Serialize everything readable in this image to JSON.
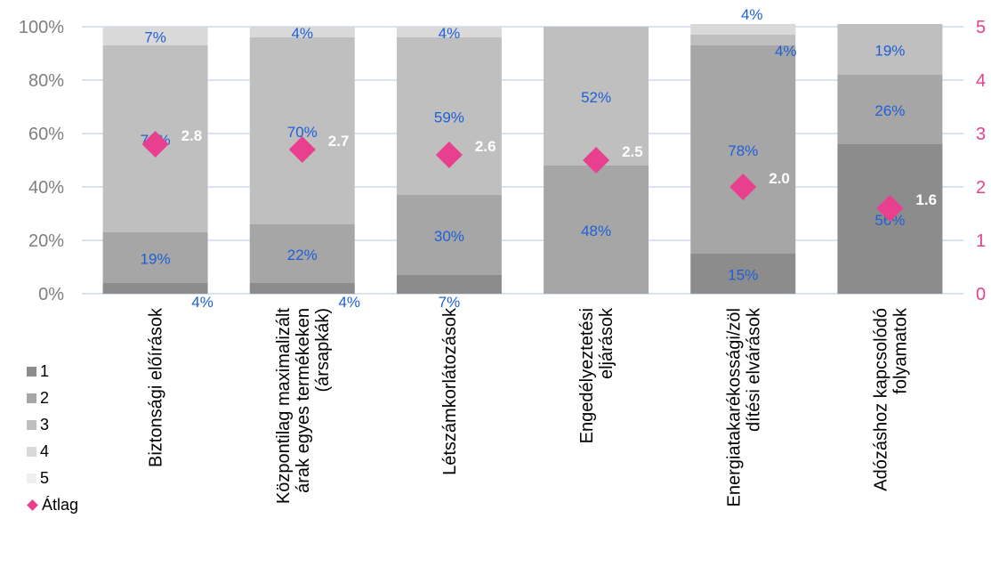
{
  "chart_data": {
    "type": "bar",
    "stacked": true,
    "categories": [
      "Biztonsági előírások",
      "Központilag maximalizált árak egyes termékeken (ársapkák)",
      "Létszámkorlátozások",
      "Engedélyeztetési eljárások",
      "Energiatakarékossági/zöl dítési elvárások",
      "Adózáshoz kapcsolódó folyamatok"
    ],
    "category_lines": [
      [
        "Biztonsági előírások"
      ],
      [
        "Központilag maximalizált",
        "árak egyes termékeken",
        "(ársapkák)"
      ],
      [
        "Létszámkorlátozások"
      ],
      [
        "Engedélyeztetési",
        "eljárások"
      ],
      [
        "Energiatakarékossági/zöl",
        "dítési elvárások"
      ],
      [
        "Adózáshoz kapcsolódó",
        "folyamatok"
      ]
    ],
    "series": [
      {
        "name": "1",
        "color": "#8c8c8c",
        "values": [
          4,
          4,
          7,
          0,
          15,
          56
        ],
        "labels": [
          "4%",
          "4%",
          "7%",
          "",
          "15%",
          "56%"
        ]
      },
      {
        "name": "2",
        "color": "#a6a6a6",
        "values": [
          19,
          22,
          30,
          48,
          78,
          26
        ],
        "labels": [
          "19%",
          "22%",
          "30%",
          "48%",
          "78%",
          "26%"
        ]
      },
      {
        "name": "3",
        "color": "#bfbfbf",
        "values": [
          70,
          70,
          59,
          52,
          4,
          19
        ],
        "labels": [
          "70%",
          "70%",
          "59%",
          "52%",
          "4%",
          "19%"
        ]
      },
      {
        "name": "4",
        "color": "#d9d9d9",
        "values": [
          7,
          4,
          4,
          0,
          4,
          0
        ],
        "labels": [
          "7%",
          "4%",
          "4%",
          "",
          "4%",
          ""
        ]
      },
      {
        "name": "5",
        "color": "#efefef",
        "values": [
          0,
          0,
          0,
          0,
          0,
          0
        ],
        "labels": [
          "",
          "",
          "",
          "",
          "",
          ""
        ]
      }
    ],
    "average": {
      "name": "Átlag",
      "color": "#e8408f",
      "values": [
        2.8,
        2.7,
        2.6,
        2.5,
        2.0,
        1.6
      ],
      "labels": [
        "2.8",
        "2.7",
        "2.6",
        "2.5",
        "2.0",
        "1.6"
      ]
    },
    "y_left": {
      "ticks": [
        "0%",
        "20%",
        "40%",
        "60%",
        "80%",
        "100%"
      ],
      "ylim": [
        0,
        100
      ]
    },
    "y_right": {
      "ticks": [
        "0",
        "1",
        "2",
        "3",
        "4",
        "5"
      ],
      "ylim": [
        0,
        5
      ]
    },
    "grid": true,
    "legend_position": "bottom-left",
    "colors": {
      "data_label": "#1f5fd6",
      "avg_label": "#ffffff",
      "axis_left": "#7f7f7f",
      "axis_right": "#e8408f",
      "grid": "#b4c7e7"
    }
  }
}
